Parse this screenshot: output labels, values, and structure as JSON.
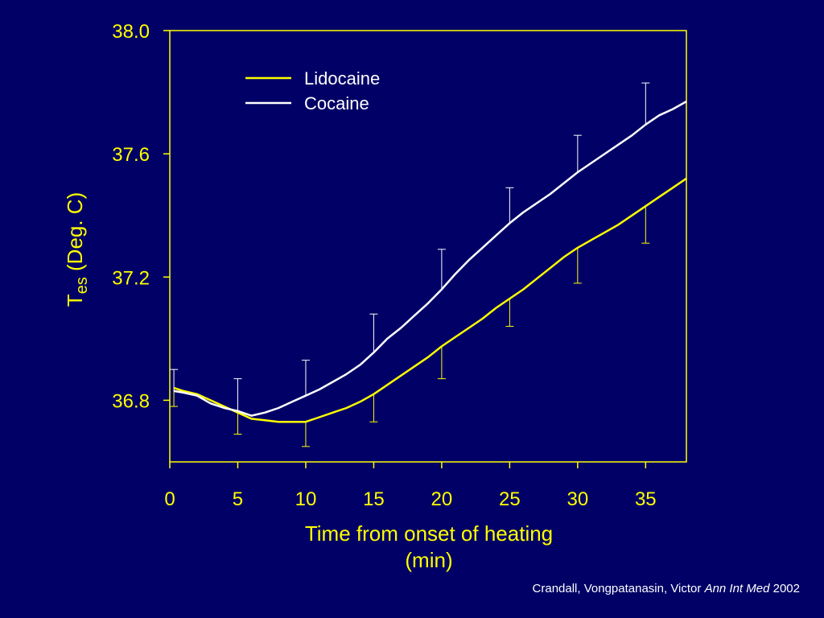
{
  "chart_data": {
    "type": "line",
    "xlabel_line1": "Time from onset of heating",
    "xlabel_line2": "(min)",
    "ylabel_main": "T",
    "ylabel_sub": "es",
    "ylabel_rest": " (Deg. C)",
    "xlim": [
      0,
      38
    ],
    "ylim": [
      36.6,
      38.0
    ],
    "x_ticks": [
      0,
      5,
      10,
      15,
      20,
      25,
      30,
      35
    ],
    "x_tick_labels": [
      "0",
      "5",
      "10",
      "15",
      "20",
      "25",
      "30",
      "35"
    ],
    "y_ticks": [
      36.8,
      37.2,
      37.6,
      38.0
    ],
    "y_tick_labels": [
      "36.8",
      "37.2",
      "37.6",
      "38.0"
    ],
    "legend_position": "top-center",
    "colors": {
      "background": "#000066",
      "axis": "#ffff00",
      "text": "#ffff00",
      "lidocaine": "#ffff00",
      "cocaine": "#ffffff"
    },
    "series": [
      {
        "name": "Lidocaine",
        "color": "#ffff00",
        "x": [
          0.3,
          1,
          2,
          3,
          4,
          5,
          6,
          7,
          8,
          9,
          10,
          11,
          12,
          13,
          14,
          15,
          16,
          17,
          18,
          19,
          20,
          21,
          22,
          23,
          24,
          25,
          26,
          27,
          28,
          29,
          30,
          31,
          32,
          33,
          34,
          35,
          36,
          37,
          38
        ],
        "values": [
          36.84,
          36.83,
          36.82,
          36.8,
          36.78,
          36.76,
          36.74,
          36.735,
          36.73,
          36.73,
          36.73,
          36.745,
          36.76,
          36.775,
          36.795,
          36.82,
          36.85,
          36.88,
          36.91,
          36.94,
          36.975,
          37.005,
          37.035,
          37.065,
          37.1,
          37.13,
          37.16,
          37.195,
          37.23,
          37.265,
          37.295,
          37.32,
          37.345,
          37.37,
          37.4,
          37.43,
          37.46,
          37.49,
          37.52
        ],
        "error_bars": [
          {
            "x": 0.3,
            "value": 36.84,
            "low": 36.78
          },
          {
            "x": 5,
            "value": 36.76,
            "low": 36.69
          },
          {
            "x": 10,
            "value": 36.73,
            "low": 36.65
          },
          {
            "x": 15,
            "value": 36.82,
            "low": 36.73
          },
          {
            "x": 20,
            "value": 36.975,
            "low": 36.87
          },
          {
            "x": 25,
            "value": 37.13,
            "low": 37.04
          },
          {
            "x": 30,
            "value": 37.295,
            "low": 37.18
          },
          {
            "x": 35,
            "value": 37.43,
            "low": 37.31
          }
        ]
      },
      {
        "name": "Cocaine",
        "color": "#ffffff",
        "x": [
          0.3,
          1,
          2,
          3,
          4,
          5,
          6,
          7,
          8,
          9,
          10,
          11,
          12,
          13,
          14,
          15,
          16,
          17,
          18,
          19,
          20,
          21,
          22,
          23,
          24,
          25,
          26,
          27,
          28,
          29,
          30,
          31,
          32,
          33,
          34,
          35,
          36,
          37,
          38
        ],
        "values": [
          36.83,
          36.825,
          36.815,
          36.79,
          36.775,
          36.765,
          36.75,
          36.76,
          36.775,
          36.795,
          36.815,
          36.835,
          36.86,
          36.885,
          36.915,
          36.955,
          37.0,
          37.035,
          37.075,
          37.115,
          37.16,
          37.21,
          37.255,
          37.295,
          37.335,
          37.375,
          37.41,
          37.44,
          37.47,
          37.505,
          37.54,
          37.57,
          37.6,
          37.63,
          37.66,
          37.695,
          37.725,
          37.745,
          37.77
        ],
        "error_bars": [
          {
            "x": 0.3,
            "value": 36.83,
            "high": 36.9
          },
          {
            "x": 5,
            "value": 36.765,
            "high": 36.87
          },
          {
            "x": 10,
            "value": 36.815,
            "high": 36.93
          },
          {
            "x": 15,
            "value": 36.955,
            "high": 37.08
          },
          {
            "x": 20,
            "value": 37.16,
            "high": 37.29
          },
          {
            "x": 25,
            "value": 37.375,
            "high": 37.49
          },
          {
            "x": 30,
            "value": 37.54,
            "high": 37.66
          },
          {
            "x": 35,
            "value": 37.695,
            "high": 37.83
          }
        ]
      }
    ]
  },
  "citation": {
    "authors": "Crandall, Vongpatanasin, Victor ",
    "journal": "Ann Int Med",
    "year": " 2002"
  }
}
